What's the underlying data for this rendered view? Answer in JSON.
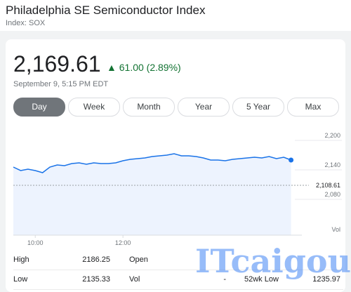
{
  "header": {
    "title": "Philadelphia SE Semiconductor Index",
    "subtitle": "Index: SOX"
  },
  "quote": {
    "price": "2,169.61",
    "change": "61.00 (2.89%)",
    "timestamp": "September 9, 5:15 PM EDT"
  },
  "tabs": [
    "Day",
    "Week",
    "Month",
    "Year",
    "5 Year",
    "Max"
  ],
  "chart_data": {
    "type": "line",
    "color": "#1a73e8",
    "x": [
      "9:30",
      "9:40",
      "9:50",
      "10:00",
      "10:10",
      "10:20",
      "10:30",
      "10:40",
      "10:50",
      "11:00",
      "11:10",
      "11:20",
      "11:30",
      "11:40",
      "11:50",
      "12:00",
      "12:10",
      "12:20",
      "12:30",
      "12:40",
      "12:50",
      "13:00",
      "13:10",
      "13:20",
      "13:30",
      "13:40",
      "13:50",
      "14:00",
      "14:10",
      "14:20",
      "14:30",
      "14:40",
      "14:50",
      "15:00",
      "15:10",
      "15:20",
      "15:30",
      "15:40",
      "15:50"
    ],
    "values": [
      2145.7,
      2138.6,
      2141.4,
      2138.6,
      2134.3,
      2145.7,
      2150,
      2148.6,
      2152.9,
      2154.3,
      2151.4,
      2154.3,
      2152.9,
      2152.9,
      2154.3,
      2158.6,
      2161.4,
      2162.9,
      2164.3,
      2167.1,
      2168.6,
      2170,
      2172.9,
      2168.6,
      2168.6,
      2167.1,
      2164.3,
      2160,
      2160,
      2158.6,
      2161.4,
      2162.9,
      2164.3,
      2165.7,
      2164.3,
      2167.1,
      2162.9,
      2165.7,
      2160
    ],
    "xlim": [
      "9:30",
      "16:00"
    ],
    "xticks": [
      "10:00",
      "12:00"
    ],
    "ylim": [
      2050,
      2220
    ],
    "yticks": [
      {
        "value": 2200,
        "label": "2,200"
      },
      {
        "value": 2140,
        "label": "2,140"
      },
      {
        "value": 2080,
        "label": "2,080"
      }
    ],
    "previous_close": {
      "value": 2108.61,
      "label": "2,108.61"
    },
    "volume_label": "Vol"
  },
  "stats": [
    [
      "High",
      "2186.25",
      "Open",
      ""
    ],
    [
      "Low",
      "2135.33",
      "Vol",
      "-"
    ]
  ],
  "extra": {
    "label": "52wk Low",
    "value": "1235.97"
  },
  "watermark": "ITcaigou"
}
